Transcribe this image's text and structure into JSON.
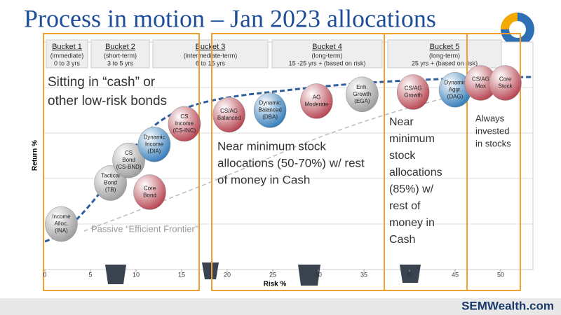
{
  "title": "Process in motion – Jan 2023 allocations",
  "buckets": [
    {
      "name": "Bucket 1",
      "term": "(immediate)",
      "range": "0 to 3 yrs"
    },
    {
      "name": "Bucket 2",
      "term": "(short-term)",
      "range": "3 to 5 yrs"
    },
    {
      "name": "Bucket 3",
      "term": "(intermediate-term)",
      "range": "6 to 15 yrs"
    },
    {
      "name": "Bucket 4",
      "term": "(long-term)",
      "range": "15 -25 yrs + (based on risk)"
    },
    {
      "name": "Bucket 5",
      "term": "(long-term)",
      "range": "25 yrs + (based on risk)"
    }
  ],
  "callouts": [
    [
      "Sitting in “cash” or",
      "other low-risk bonds"
    ],
    [
      "Near minimum stock",
      "allocations (50-70%) w/ rest",
      "of money in Cash"
    ],
    [
      "Near",
      "minimum",
      "stock",
      "allocations",
      "(85%) w/",
      "rest of",
      "money in",
      "Cash"
    ],
    [
      "Always",
      "invested",
      "in stocks"
    ]
  ],
  "footer": "SEMWealth.com",
  "chart_data": {
    "type": "scatter",
    "x_label": "Risk %",
    "y_label": "Return %",
    "annotation": "Passive “Efficient Frontier”",
    "xlim": [
      0,
      53
    ],
    "ylim": [
      0,
      5
    ],
    "xticks": [
      0,
      5,
      10,
      15,
      20,
      25,
      30,
      35,
      40,
      45,
      50
    ],
    "points": [
      {
        "label": [
          "Income",
          "Alloc.",
          "(INA)"
        ],
        "x": 1.8,
        "y": 1.0,
        "color": "#9a9a9a"
      },
      {
        "label": [
          "Tactical",
          "Bond",
          "(TB)"
        ],
        "x": 7.2,
        "y": 1.9,
        "color": "#9a9a9a"
      },
      {
        "label": [
          "CS",
          "Bond",
          "(CS-BND)"
        ],
        "x": 9.2,
        "y": 2.4,
        "color": "#9a9a9a"
      },
      {
        "label": [
          "Core",
          "Bond"
        ],
        "x": 11.5,
        "y": 1.7,
        "color": "#b5404d"
      },
      {
        "label": [
          "Dynamic",
          "Income",
          "(DIA)"
        ],
        "x": 12.0,
        "y": 2.75,
        "color": "#2f7ab8"
      },
      {
        "label": [
          "CS",
          "Income",
          "(CS-INC)"
        ],
        "x": 15.3,
        "y": 3.2,
        "color": "#b5404d"
      },
      {
        "label": [
          "CS/AG",
          "Balanced"
        ],
        "x": 20.2,
        "y": 3.4,
        "color": "#b5404d"
      },
      {
        "label": [
          "Dynamic",
          "Balanced",
          "(DBA)"
        ],
        "x": 24.7,
        "y": 3.5,
        "color": "#2f7ab8"
      },
      {
        "label": [
          "AG",
          "Moderate"
        ],
        "x": 29.8,
        "y": 3.7,
        "color": "#b5404d"
      },
      {
        "label": [
          "Enh.",
          "Growth",
          "(EGA)"
        ],
        "x": 34.8,
        "y": 3.85,
        "color": "#9a9a9a"
      },
      {
        "label": [
          "CS/AG",
          "Growth"
        ],
        "x": 40.4,
        "y": 3.9,
        "color": "#b5404d"
      },
      {
        "label": [
          "Dynamic",
          "Aggr.",
          "(DAG)"
        ],
        "x": 45.0,
        "y": 3.95,
        "color": "#2f7ab8"
      },
      {
        "label": [
          "CS/AG",
          "Max"
        ],
        "x": 47.8,
        "y": 4.1,
        "color": "#b5404d"
      },
      {
        "label": [
          "Core",
          "Stock"
        ],
        "x": 50.5,
        "y": 4.1,
        "color": "#b5404d"
      }
    ]
  }
}
